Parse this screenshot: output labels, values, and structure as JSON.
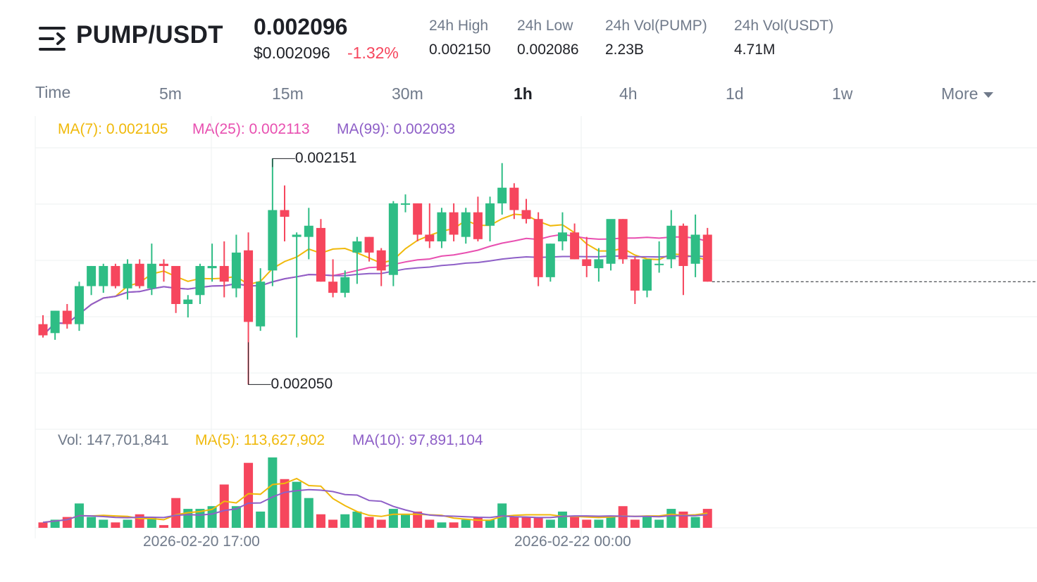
{
  "header": {
    "pair": "PUMP/USDT",
    "last_price": "0.002096",
    "usd_price": "$0.002096",
    "change": "-1.32%",
    "stats": [
      {
        "label": "24h High",
        "value": "0.002150"
      },
      {
        "label": "24h Low",
        "value": "0.002086"
      },
      {
        "label": "24h Vol(PUMP)",
        "value": "2.23B"
      },
      {
        "label": "24h Vol(USDT)",
        "value": "4.71M"
      }
    ]
  },
  "timeframes": [
    {
      "label": "Time",
      "active": false
    },
    {
      "label": "5m",
      "active": false
    },
    {
      "label": "15m",
      "active": false
    },
    {
      "label": "30m",
      "active": false
    },
    {
      "label": "1h",
      "active": true
    },
    {
      "label": "4h",
      "active": false
    },
    {
      "label": "1d",
      "active": false
    },
    {
      "label": "1w",
      "active": false
    },
    {
      "label": "More",
      "active": false
    }
  ],
  "indicators": {
    "ma7": "MA(7): 0.002105",
    "ma25": "MA(25): 0.002113",
    "ma99": "MA(99): 0.002093"
  },
  "volume_indicators": {
    "vol": "Vol: 147,701,841",
    "ma5": "MA(5): 113,627,902",
    "ma10": "MA(10): 97,891,104"
  },
  "annotations": {
    "high": "0.002151",
    "low": "0.002050"
  },
  "x_labels": [
    "2026-02-20 17:00",
    "2026-02-22 00:00"
  ],
  "colors": {
    "up": "#2ebd85",
    "down": "#f6465d",
    "ma7": "#f0b90b",
    "ma25": "#e84fb0",
    "ma99": "#8e5fc7",
    "muted": "#707a8a"
  },
  "chart_data": {
    "type": "candlestick",
    "interval": "1h",
    "candles": [
      {
        "o": 0.002077,
        "h": 0.002081,
        "l": 0.002071,
        "c": 0.002072
      },
      {
        "o": 0.002073,
        "h": 0.002083,
        "l": 0.00207,
        "c": 0.002083
      },
      {
        "o": 0.002083,
        "h": 0.002086,
        "l": 0.002075,
        "c": 0.002077
      },
      {
        "o": 0.002077,
        "h": 0.002096,
        "l": 0.002074,
        "c": 0.002094
      },
      {
        "o": 0.002094,
        "h": 0.002103,
        "l": 0.00209,
        "c": 0.002103
      },
      {
        "o": 0.002094,
        "h": 0.002104,
        "l": 0.002091,
        "c": 0.002103
      },
      {
        "o": 0.002103,
        "h": 0.002104,
        "l": 0.002093,
        "c": 0.002094
      },
      {
        "o": 0.002093,
        "h": 0.002106,
        "l": 0.002088,
        "c": 0.002104
      },
      {
        "o": 0.002104,
        "h": 0.002106,
        "l": 0.002093,
        "c": 0.002094
      },
      {
        "o": 0.002093,
        "h": 0.002113,
        "l": 0.00209,
        "c": 0.002104
      },
      {
        "o": 0.002104,
        "h": 0.002106,
        "l": 0.002096,
        "c": 0.002103
      },
      {
        "o": 0.002103,
        "h": 0.002103,
        "l": 0.002082,
        "c": 0.002086
      },
      {
        "o": 0.002086,
        "h": 0.00209,
        "l": 0.00208,
        "c": 0.002088
      },
      {
        "o": 0.00209,
        "h": 0.002104,
        "l": 0.002086,
        "c": 0.002103
      },
      {
        "o": 0.002102,
        "h": 0.002113,
        "l": 0.002096,
        "c": 0.002103
      },
      {
        "o": 0.002103,
        "h": 0.002114,
        "l": 0.002089,
        "c": 0.002096
      },
      {
        "o": 0.002093,
        "h": 0.002117,
        "l": 0.002089,
        "c": 0.002109
      },
      {
        "o": 0.00211,
        "h": 0.002118,
        "l": 0.00205,
        "c": 0.002078
      },
      {
        "o": 0.002076,
        "h": 0.002102,
        "l": 0.002074,
        "c": 0.002096
      },
      {
        "o": 0.002101,
        "h": 0.002151,
        "l": 0.002094,
        "c": 0.002128
      },
      {
        "o": 0.002128,
        "h": 0.002139,
        "l": 0.002114,
        "c": 0.002125
      },
      {
        "o": 0.002116,
        "h": 0.002118,
        "l": 0.002071,
        "c": 0.002117
      },
      {
        "o": 0.002116,
        "h": 0.002129,
        "l": 0.002106,
        "c": 0.002121
      },
      {
        "o": 0.00212,
        "h": 0.002124,
        "l": 0.002096,
        "c": 0.002096
      },
      {
        "o": 0.002096,
        "h": 0.002106,
        "l": 0.002089,
        "c": 0.002091
      },
      {
        "o": 0.002091,
        "h": 0.002101,
        "l": 0.002089,
        "c": 0.002098
      },
      {
        "o": 0.002109,
        "h": 0.002116,
        "l": 0.002095,
        "c": 0.002114
      },
      {
        "o": 0.002116,
        "h": 0.002116,
        "l": 0.002105,
        "c": 0.002109
      },
      {
        "o": 0.00211,
        "h": 0.002111,
        "l": 0.002094,
        "c": 0.002101
      },
      {
        "o": 0.002099,
        "h": 0.002132,
        "l": 0.002094,
        "c": 0.002131
      },
      {
        "o": 0.002131,
        "h": 0.002135,
        "l": 0.002127,
        "c": 0.002131
      },
      {
        "o": 0.002131,
        "h": 0.002131,
        "l": 0.002114,
        "c": 0.002117
      },
      {
        "o": 0.002117,
        "h": 0.002131,
        "l": 0.002111,
        "c": 0.002114
      },
      {
        "o": 0.002114,
        "h": 0.002129,
        "l": 0.002111,
        "c": 0.002127
      },
      {
        "o": 0.002127,
        "h": 0.002131,
        "l": 0.002114,
        "c": 0.002117
      },
      {
        "o": 0.002116,
        "h": 0.002129,
        "l": 0.002113,
        "c": 0.002127
      },
      {
        "o": 0.002127,
        "h": 0.002134,
        "l": 0.002114,
        "c": 0.002115
      },
      {
        "o": 0.002121,
        "h": 0.002134,
        "l": 0.002114,
        "c": 0.002131
      },
      {
        "o": 0.002131,
        "h": 0.002149,
        "l": 0.002126,
        "c": 0.002138
      },
      {
        "o": 0.002138,
        "h": 0.00214,
        "l": 0.002124,
        "c": 0.002128
      },
      {
        "o": 0.002128,
        "h": 0.002133,
        "l": 0.002122,
        "c": 0.002124
      },
      {
        "o": 0.002124,
        "h": 0.002127,
        "l": 0.002094,
        "c": 0.002098
      },
      {
        "o": 0.002098,
        "h": 0.002113,
        "l": 0.002096,
        "c": 0.002113
      },
      {
        "o": 0.002114,
        "h": 0.002127,
        "l": 0.00211,
        "c": 0.002118
      },
      {
        "o": 0.002118,
        "h": 0.002122,
        "l": 0.002106,
        "c": 0.002106
      },
      {
        "o": 0.002106,
        "h": 0.002116,
        "l": 0.002098,
        "c": 0.002103
      },
      {
        "o": 0.002102,
        "h": 0.002111,
        "l": 0.002096,
        "c": 0.002106
      },
      {
        "o": 0.002104,
        "h": 0.002123,
        "l": 0.002101,
        "c": 0.002124
      },
      {
        "o": 0.002124,
        "h": 0.002124,
        "l": 0.002104,
        "c": 0.002106
      },
      {
        "o": 0.002106,
        "h": 0.002107,
        "l": 0.002086,
        "c": 0.002092
      },
      {
        "o": 0.002092,
        "h": 0.002106,
        "l": 0.002089,
        "c": 0.002106
      },
      {
        "o": 0.002104,
        "h": 0.002114,
        "l": 0.0021,
        "c": 0.002104
      },
      {
        "o": 0.002106,
        "h": 0.002128,
        "l": 0.002102,
        "c": 0.002121
      },
      {
        "o": 0.002121,
        "h": 0.002122,
        "l": 0.00209,
        "c": 0.002103
      },
      {
        "o": 0.002104,
        "h": 0.002126,
        "l": 0.002098,
        "c": 0.002117
      },
      {
        "o": 0.002117,
        "h": 0.00212,
        "l": 0.002096,
        "c": 0.002096
      }
    ],
    "volume": [
      0.2,
      0.3,
      0.4,
      0.9,
      0.4,
      0.3,
      0.2,
      0.3,
      0.5,
      0.4,
      0.1,
      1.1,
      0.7,
      0.7,
      0.8,
      1.6,
      0.8,
      2.4,
      0.6,
      2.6,
      1.8,
      1.7,
      1.1,
      0.5,
      0.3,
      0.5,
      0.6,
      0.4,
      0.3,
      0.7,
      0.5,
      0.6,
      0.3,
      0.2,
      0.2,
      0.3,
      0.4,
      0.3,
      0.9,
      0.4,
      0.4,
      0.4,
      0.3,
      0.6,
      0.4,
      0.3,
      0.3,
      0.4,
      0.8,
      0.3,
      0.4,
      0.3,
      0.7,
      0.6,
      0.4,
      0.7
    ],
    "volume_max": 2.6,
    "y_range": [
      0.00203,
      0.00217
    ],
    "last_close": 0.002096
  }
}
